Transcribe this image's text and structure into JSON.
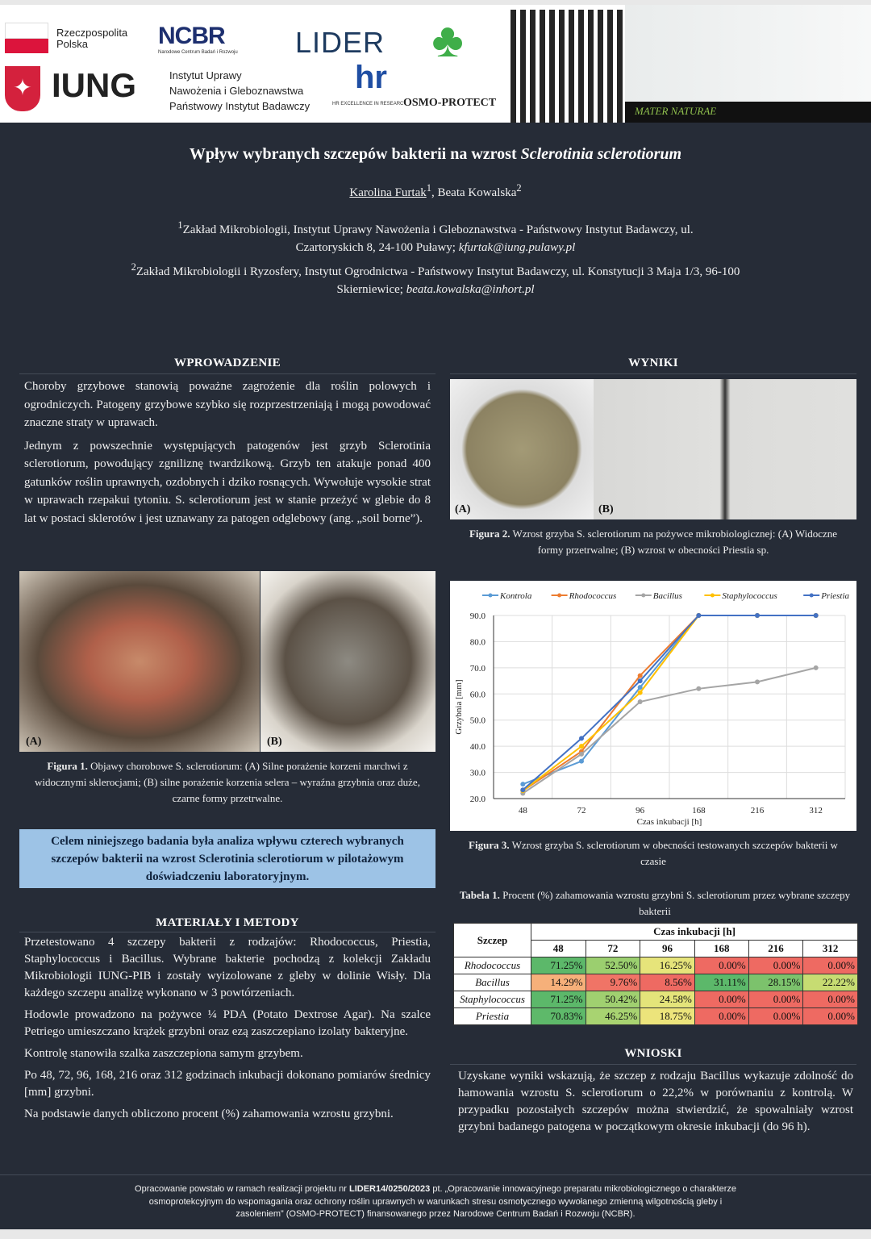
{
  "header": {
    "rp_logo": "Rzeczpospolita Polska",
    "ncbr_logo": "NCBR",
    "ncbr_sub": "Narodowe Centrum Badań i Rozwoju",
    "lider_logo": "LIDER",
    "iung_logo": "IUNG",
    "iung_text": [
      "Instytut Uprawy",
      "Nawożenia i Gleboznawstwa",
      "Państwowy Instytut Badawczy"
    ],
    "hr_logo": "hr",
    "hr_sub": "HR EXCELLENCE IN RESEARC",
    "osmo_logo": "OSMO-PROTECT",
    "mater_logo": "MATER NATURAE"
  },
  "title_main": "Wpływ wybranych szczepów bakterii na wzrost ",
  "title_italic": "Sclerotinia sclerotiorum",
  "authors": {
    "a1": "Karolina Furtak",
    "s1": "1",
    "sep": ", Beata Kowalska",
    "s2": "2"
  },
  "affiliations": [
    {
      "sup": "1",
      "text": "Zakład Mikrobiologii, Instytut Uprawy Nawożenia i Gleboznawstwa - Państwowy Instytut Badawczy, ul. Czartoryskich 8, 24-100 Puławy; ",
      "email": "kfurtak@iung.pulawy.pl"
    },
    {
      "sup": "2",
      "text": "Zakład Mikrobiologii i Ryzosfery, Instytut Ogrodnictwa - Państwowy Instytut Badawczy, ul. Konstytucji 3 Maja 1/3, 96-100 Skierniewice; ",
      "email": "beata.kowalska@inhort.pl"
    }
  ],
  "intro": {
    "heading": "WPROWADZENIE",
    "p1": "Choroby grzybowe stanowią poważne zagrożenie dla roślin polowych i ogrodniczych. Patogeny grzybowe szybko się rozprzestrzeniają i mogą powodować znaczne straty w uprawach.",
    "p2": "Jednym z powszechnie występujących patogenów jest grzyb Sclerotinia sclerotiorum, powodujący zgniliznę twardzikową. Grzyb ten atakuje ponad 400 gatunków roślin uprawnych, ozdobnych i dziko rosnących. Wywołuje wysokie strat w uprawach rzepakui tytoniu. S. sclerotiorum jest w stanie przeżyć w glebie do 8 lat w postaci sklerotów i jest uznawany za patogen odglebowy (ang. „soil borne”)."
  },
  "fig1": {
    "label_a": "(A)",
    "label_b": "(B)",
    "caption_bold": "Figura 1.",
    "caption": " Objawy chorobowe S. sclerotiorum: (A) Silne porażenie korzeni marchwi z widocznymi sklerocjami; (B) silne porażenie korzenia selera – wyraźna grzybnia oraz duże, czarne formy przetrwalne."
  },
  "aim": "Celem niniejszego badania była analiza wpływu czterech wybranych szczepów bakterii na wzrost Sclerotinia sclerotiorum w pilotażowym doświadczeniu laboratoryjnym.",
  "methods": {
    "heading": "MATERIAŁY I METODY",
    "paras": [
      "Przetestowano 4 szczepy bakterii z rodzajów: Rhodococcus, Priestia, Staphylococcus i Bacillus. Wybrane bakterie pochodzą z kolekcji Zakładu Mikrobiologii IUNG-PIB i zostały wyizolowane z gleby w dolinie Wisły. Dla każdego szczepu analizę wykonano w 3 powtórzeniach.",
      "Hodowle prowadzono na pożywce ¼ PDA (Potato Dextrose Agar). Na szalce Petriego umieszczano krążek grzybni oraz ezą zaszczepiano izolaty bakteryjne.",
      "Kontrolę stanowiła szalka zaszczepiona samym grzybem.",
      "Po 48, 72, 96, 168, 216 oraz 312 godzinach inkubacji dokonano pomiarów średnicy [mm] grzybni.",
      "Na podstawie danych obliczono procent (%) zahamowania wzrostu grzybni."
    ]
  },
  "results": {
    "heading": "WYNIKI",
    "fig2": {
      "label_a": "(A)",
      "label_b": "(B)",
      "caption_bold": "Figura 2.",
      "caption": " Wzrost grzyba S. sclerotiorum na pożywce mikrobiologicznej: (A) Widoczne formy przetrwalne; (B) wzrost w obecności Priestia sp."
    },
    "fig3": {
      "caption_bold": "Figura 3.",
      "caption": " Wzrost grzyba S. sclerotiorum w obecności testowanych szczepów bakterii w czasie"
    },
    "table": {
      "caption_bold": "Tabela 1.",
      "caption": " Procent (%) zahamowania wzrostu grzybni S. sclerotiorum przez wybrane szczepy bakterii",
      "col_strain": "Szczep",
      "col_time": "Czas inkubacji [h]",
      "times": [
        "48",
        "72",
        "96",
        "168",
        "216",
        "312"
      ],
      "rows": [
        {
          "name": "Rhodococcus",
          "values": [
            "71.25%",
            "52.50%",
            "16.25%",
            "0.00%",
            "0.00%",
            "0.00%"
          ],
          "colors": [
            "#5cb86a",
            "#9bcf6f",
            "#e6e47a",
            "#ee6a62",
            "#ee6a62",
            "#ee6a62"
          ]
        },
        {
          "name": "Bacillus",
          "values": [
            "14.29%",
            "9.76%",
            "8.56%",
            "31.11%",
            "28.15%",
            "22.22%"
          ],
          "colors": [
            "#f6b07a",
            "#f07466",
            "#ee6a62",
            "#5cb86a",
            "#7cc26c",
            "#c7dc72"
          ]
        },
        {
          "name": "Staphylococcus",
          "values": [
            "71.25%",
            "50.42%",
            "24.58%",
            "0.00%",
            "0.00%",
            "0.00%"
          ],
          "colors": [
            "#5cb86a",
            "#a0d070",
            "#e4e47a",
            "#ee6a62",
            "#ee6a62",
            "#ee6a62"
          ]
        },
        {
          "name": "Priestia",
          "values": [
            "70.83%",
            "46.25%",
            "18.75%",
            "0.00%",
            "0.00%",
            "0.00%"
          ],
          "colors": [
            "#5eb96a",
            "#a8d371",
            "#ece47b",
            "#ee6a62",
            "#ee6a62",
            "#ee6a62"
          ]
        }
      ]
    }
  },
  "conclusions": {
    "heading": "WNIOSKI",
    "text": "Uzyskane wyniki wskazują, że szczep z rodzaju Bacillus wykazuje zdolność do hamowania wzrostu S. sclerotiorum o 22,2% w porównaniu z kontrolą. W przypadku pozostałych szczepów można stwierdzić, że spowalniały wzrost grzybni badanego patogena w początkowym okresie inkubacji (do 96 h)."
  },
  "footer": {
    "pre": "Opracowanie powstało w ramach realizacji projektu nr ",
    "bold": "LIDER14/0250/2023",
    "post": " pt. „Opracowanie innowacyjnego preparatu mikrobiologicznego o charakterze osmoprotekcyjnym do wspomagania oraz ochrony roślin uprawnych w warunkach stresu osmotycznego wywołanego zmienną wilgotnością gleby i zasoleniem” (OSMO-PROTECT) finansowanego przez Narodowe Centrum Badań i Rozwoju (NCBR)."
  },
  "chart_data": {
    "type": "line",
    "xlabel": "Czas inkubacji [h]",
    "ylabel": "Grzybnia [mm]",
    "categories": [
      "48",
      "72",
      "96",
      "168",
      "216",
      "312"
    ],
    "ylim": [
      20,
      90
    ],
    "yticks": [
      "20.0",
      "30.0",
      "40.0",
      "50.0",
      "60.0",
      "70.0",
      "80.0",
      "90.0"
    ],
    "grid": true,
    "legend": "top",
    "series": [
      {
        "name": "Kontrola",
        "color": "#5b9bd5",
        "values": [
          25.5,
          34.3,
          62.5,
          90,
          90,
          90
        ]
      },
      {
        "name": "Rhodococcus",
        "color": "#ed7d31",
        "values": [
          23,
          38,
          67,
          90,
          90,
          90
        ]
      },
      {
        "name": "Bacillus",
        "color": "#a5a5a5",
        "values": [
          22,
          37,
          57,
          62,
          64.6,
          70
        ]
      },
      {
        "name": "Staphylococcus",
        "color": "#ffc000",
        "values": [
          23,
          40,
          60.5,
          90,
          90,
          90
        ]
      },
      {
        "name": "Priestia",
        "color": "#4472c4",
        "values": [
          23.3,
          43,
          65,
          90,
          90,
          90
        ]
      }
    ]
  }
}
